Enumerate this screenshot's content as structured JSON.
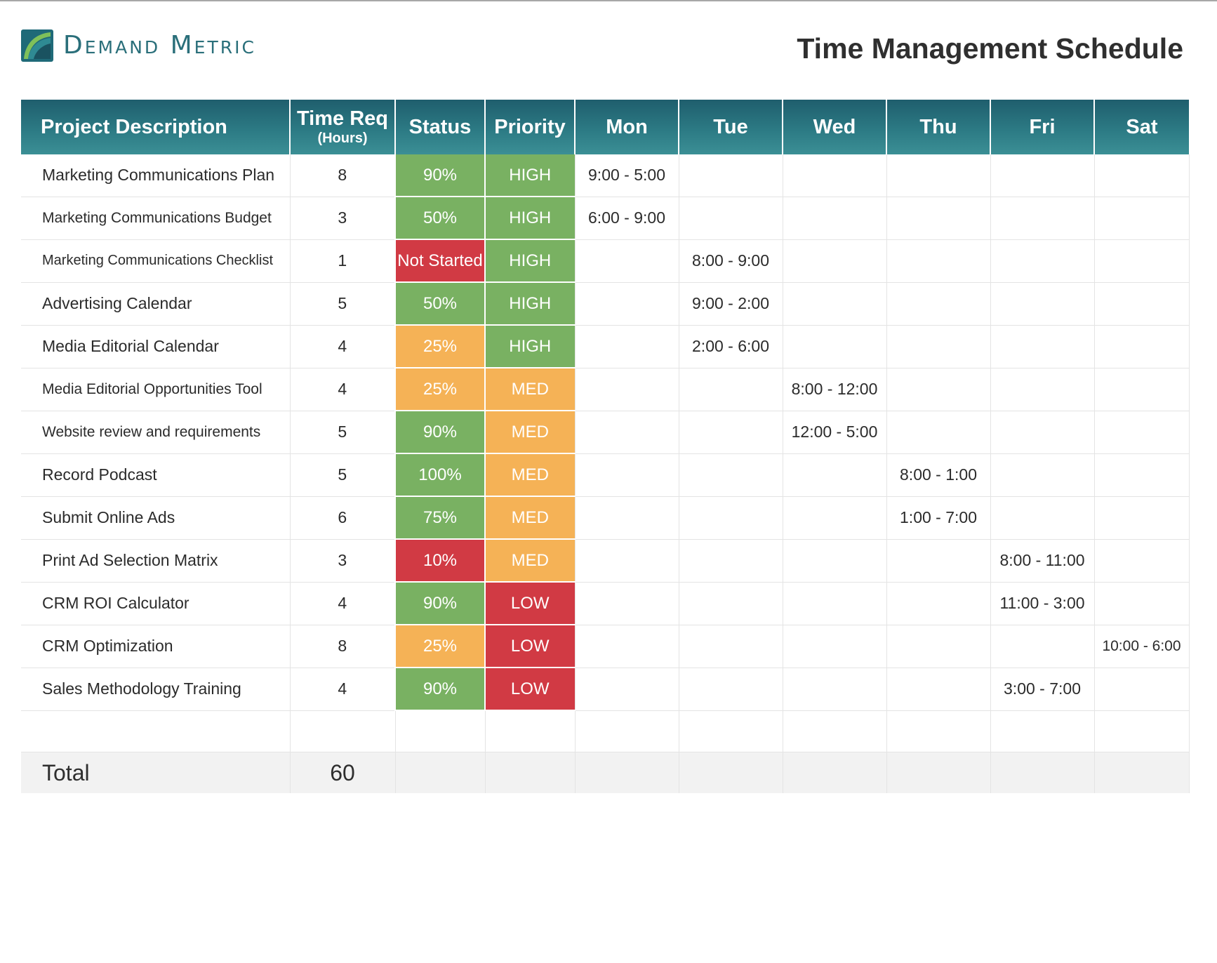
{
  "brand": {
    "name": "Demand Metric",
    "logo_colors": [
      "#1f6a78",
      "#5fa34a"
    ]
  },
  "title": "Time Management Schedule",
  "headers": {
    "project": "Project Description",
    "time_req": "Time Req",
    "time_req_unit": "(Hours)",
    "status": "Status",
    "priority": "Priority",
    "days": [
      "Mon",
      "Tue",
      "Wed",
      "Thu",
      "Fri",
      "Sat"
    ]
  },
  "colors": {
    "header": "#2c7a84",
    "green": "#79b162",
    "amber": "#f5b256",
    "red": "#d13a44"
  },
  "rows": [
    {
      "project": "Marketing Communications Plan",
      "hours": "8",
      "status": "90%",
      "priority": "HIGH",
      "mon": "9:00 - 5:00",
      "tue": "",
      "wed": "",
      "thu": "",
      "fri": "",
      "sat": ""
    },
    {
      "project": "Marketing Communications Budget",
      "hours": "3",
      "status": "50%",
      "priority": "HIGH",
      "mon": "6:00 - 9:00",
      "tue": "",
      "wed": "",
      "thu": "",
      "fri": "",
      "sat": ""
    },
    {
      "project": "Marketing Communications Checklist",
      "hours": "1",
      "status": "Not Started",
      "priority": "HIGH",
      "mon": "",
      "tue": "8:00 - 9:00",
      "wed": "",
      "thu": "",
      "fri": "",
      "sat": ""
    },
    {
      "project": "Advertising Calendar",
      "hours": "5",
      "status": "50%",
      "priority": "HIGH",
      "mon": "",
      "tue": "9:00 - 2:00",
      "wed": "",
      "thu": "",
      "fri": "",
      "sat": ""
    },
    {
      "project": "Media Editorial Calendar",
      "hours": "4",
      "status": "25%",
      "priority": "HIGH",
      "mon": "",
      "tue": "2:00 - 6:00",
      "wed": "",
      "thu": "",
      "fri": "",
      "sat": ""
    },
    {
      "project": "Media Editorial Opportunities Tool",
      "hours": "4",
      "status": "25%",
      "priority": "MED",
      "mon": "",
      "tue": "",
      "wed": "8:00 - 12:00",
      "thu": "",
      "fri": "",
      "sat": ""
    },
    {
      "project": "Website review and requirements",
      "hours": "5",
      "status": "90%",
      "priority": "MED",
      "mon": "",
      "tue": "",
      "wed": "12:00 - 5:00",
      "thu": "",
      "fri": "",
      "sat": ""
    },
    {
      "project": "Record Podcast",
      "hours": "5",
      "status": "100%",
      "priority": "MED",
      "mon": "",
      "tue": "",
      "wed": "",
      "thu": "8:00 - 1:00",
      "fri": "",
      "sat": ""
    },
    {
      "project": "Submit Online Ads",
      "hours": "6",
      "status": "75%",
      "priority": "MED",
      "mon": "",
      "tue": "",
      "wed": "",
      "thu": "1:00 - 7:00",
      "fri": "",
      "sat": ""
    },
    {
      "project": "Print Ad Selection Matrix",
      "hours": "3",
      "status": "10%",
      "priority": "MED",
      "mon": "",
      "tue": "",
      "wed": "",
      "thu": "",
      "fri": "8:00 - 11:00",
      "sat": ""
    },
    {
      "project": "CRM ROI Calculator",
      "hours": "4",
      "status": "90%",
      "priority": "LOW",
      "mon": "",
      "tue": "",
      "wed": "",
      "thu": "",
      "fri": "11:00 - 3:00",
      "sat": ""
    },
    {
      "project": "CRM Optimization",
      "hours": "8",
      "status": "25%",
      "priority": "LOW",
      "mon": "",
      "tue": "",
      "wed": "",
      "thu": "",
      "fri": "",
      "sat": "10:00 - 6:00"
    },
    {
      "project": "Sales Methodology Training",
      "hours": "4",
      "status": "90%",
      "priority": "LOW",
      "mon": "",
      "tue": "",
      "wed": "",
      "thu": "",
      "fri": "3:00 - 7:00",
      "sat": ""
    }
  ],
  "total": {
    "label": "Total",
    "hours": "60"
  }
}
